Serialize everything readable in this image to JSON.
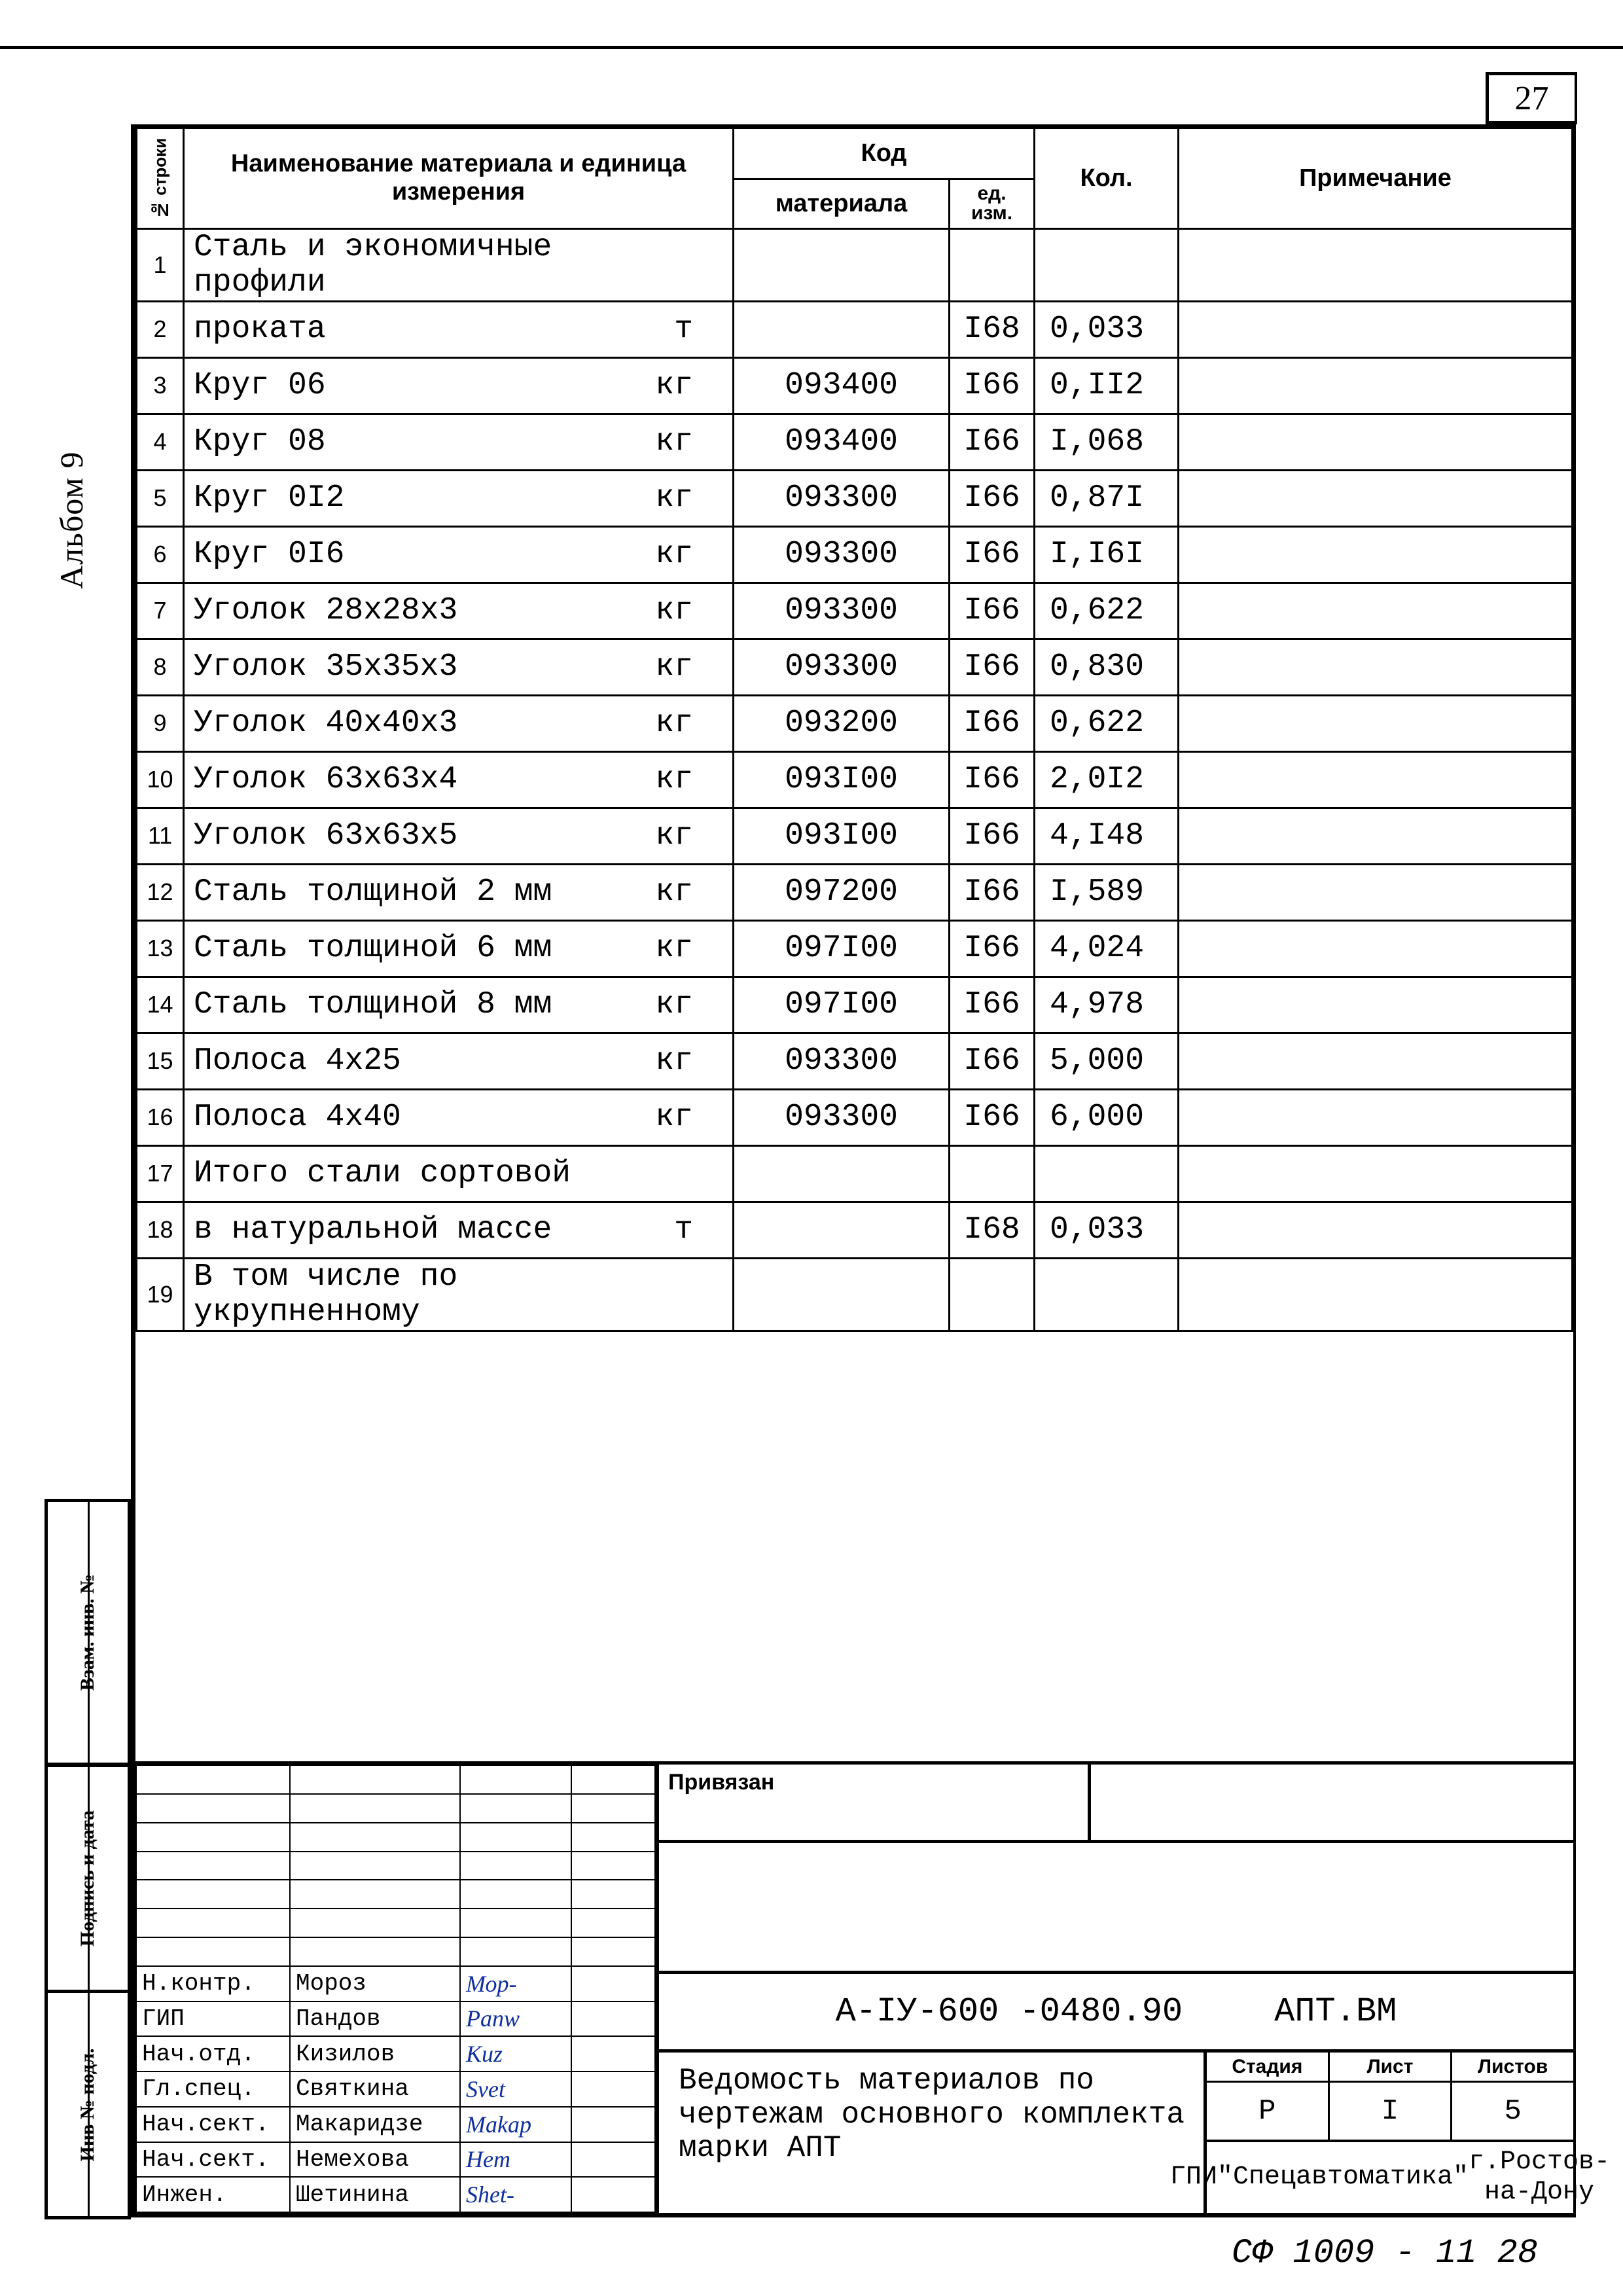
{
  "page_number": "27",
  "album_label": "Альбом 9",
  "side_labels": {
    "vzam": "Взам. инв. №",
    "podpis": "Подпись и дата",
    "inv": "Инв № подл."
  },
  "columns": {
    "rownum": "№ строки",
    "name": "Наименование материала и единица измерения",
    "kod": "Код",
    "material": "материала",
    "ed": "ед. изм.",
    "qty": "Кол.",
    "note": "Примечание"
  },
  "rows": [
    {
      "n": "1",
      "name": "Сталь и экономичные профили",
      "unit": "",
      "code": "",
      "ed": "",
      "qty": "",
      "note": ""
    },
    {
      "n": "2",
      "name": "проката",
      "unit": "т",
      "code": "",
      "ed": "I68",
      "qty": "0,033",
      "note": ""
    },
    {
      "n": "3",
      "name": "Круг 06",
      "unit": "кг",
      "code": "093400",
      "ed": "I66",
      "qty": "0,II2",
      "note": ""
    },
    {
      "n": "4",
      "name": "Круг 08",
      "unit": "кг",
      "code": "093400",
      "ed": "I66",
      "qty": "I,068",
      "note": ""
    },
    {
      "n": "5",
      "name": "Круг 0I2",
      "unit": "кг",
      "code": "093300",
      "ed": "I66",
      "qty": "0,87I",
      "note": ""
    },
    {
      "n": "6",
      "name": "Круг 0I6",
      "unit": "кг",
      "code": "093300",
      "ed": "I66",
      "qty": "I,I6I",
      "note": ""
    },
    {
      "n": "7",
      "name": "Уголок 28х28х3",
      "unit": "кг",
      "code": "093300",
      "ed": "I66",
      "qty": "0,622",
      "note": ""
    },
    {
      "n": "8",
      "name": "Уголок 35х35х3",
      "unit": "кг",
      "code": "093300",
      "ed": "I66",
      "qty": "0,830",
      "note": ""
    },
    {
      "n": "9",
      "name": "Уголок 40х40х3",
      "unit": "кг",
      "code": "093200",
      "ed": "I66",
      "qty": "0,622",
      "note": ""
    },
    {
      "n": "10",
      "name": "Уголок 63х63х4",
      "unit": "кг",
      "code": "093I00",
      "ed": "I66",
      "qty": "2,0I2",
      "note": ""
    },
    {
      "n": "11",
      "name": "Уголок 63х63х5",
      "unit": "кг",
      "code": "093I00",
      "ed": "I66",
      "qty": "4,I48",
      "note": ""
    },
    {
      "n": "12",
      "name": "Сталь толщиной 2 мм",
      "unit": "кг",
      "code": "097200",
      "ed": "I66",
      "qty": "I,589",
      "note": ""
    },
    {
      "n": "13",
      "name": "Сталь толщиной 6 мм",
      "unit": "кг",
      "code": "097I00",
      "ed": "I66",
      "qty": "4,024",
      "note": ""
    },
    {
      "n": "14",
      "name": "Сталь толщиной 8 мм",
      "unit": "кг",
      "code": "097I00",
      "ed": "I66",
      "qty": "4,978",
      "note": ""
    },
    {
      "n": "15",
      "name": "Полоса 4х25",
      "unit": "кг",
      "code": "093300",
      "ed": "I66",
      "qty": "5,000",
      "note": ""
    },
    {
      "n": "16",
      "name": "Полоса 4х40",
      "unit": "кг",
      "code": "093300",
      "ed": "I66",
      "qty": "6,000",
      "note": ""
    },
    {
      "n": "17",
      "name": "Итого стали сортовой",
      "unit": "",
      "code": "",
      "ed": "",
      "qty": "",
      "note": ""
    },
    {
      "n": "18",
      "name": "в натуральной массе",
      "unit": "т",
      "code": "",
      "ed": "I68",
      "qty": "0,033",
      "note": ""
    },
    {
      "n": "19",
      "name": "В том числе по укрупненному",
      "unit": "",
      "code": "",
      "ed": "",
      "qty": "",
      "note": ""
    }
  ],
  "approvals": [
    {
      "role": "",
      "person": "",
      "sign": "",
      "date": ""
    },
    {
      "role": "",
      "person": "",
      "sign": "",
      "date": ""
    },
    {
      "role": "",
      "person": "",
      "sign": "",
      "date": ""
    },
    {
      "role": "",
      "person": "",
      "sign": "",
      "date": ""
    },
    {
      "role": "",
      "person": "",
      "sign": "",
      "date": ""
    },
    {
      "role": "",
      "person": "",
      "sign": "",
      "date": ""
    },
    {
      "role": "",
      "person": "",
      "sign": "",
      "date": ""
    },
    {
      "role": "Н.контр.",
      "person": "Мороз",
      "sign": "Мор-",
      "date": ""
    },
    {
      "role": "ГИП",
      "person": "Пандов",
      "sign": "Panw",
      "date": ""
    },
    {
      "role": "Нач.отд.",
      "person": "Кизилов",
      "sign": "Kuz",
      "date": ""
    },
    {
      "role": "Гл.спец.",
      "person": "Святкина",
      "sign": "Svet",
      "date": ""
    },
    {
      "role": "Нач.сект.",
      "person": "Макаридзе",
      "sign": "Makap",
      "date": ""
    },
    {
      "role": "Нач.сект.",
      "person": "Немехова",
      "sign": "Hem",
      "date": ""
    },
    {
      "role": "Инжен.",
      "person": "Шетинина",
      "sign": "Shet-",
      "date": ""
    }
  ],
  "title_block": {
    "privazan": "Привязан",
    "doc_number": "А-IУ-600  -0480.90",
    "doc_suffix": "АПТ.ВМ",
    "description": "Ведомость материалов по чертежам основного комплекта марки АПТ",
    "slp": {
      "h_stage": "Стадия",
      "h_sheet": "Лист",
      "h_sheets": "Листов",
      "stage": "Р",
      "sheet": "I",
      "sheets": "5"
    },
    "org": "ГПИ\n\"Спецавтоматика\"\nг.Ростов-на-Дону"
  },
  "footer_code": "СФ 1009 - 11    28"
}
